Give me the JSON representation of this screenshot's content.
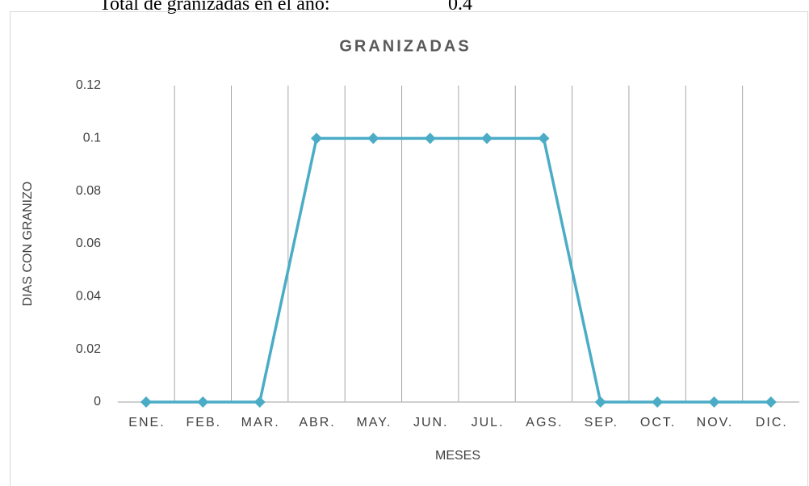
{
  "header": {
    "label": "Total de granizadas en el año:",
    "value": "0.4"
  },
  "chart_data": {
    "type": "line",
    "title": "GRANIZADAS",
    "x_label": "MESES",
    "y_label": "DIAS CON GRANIZO",
    "categories": [
      "ENE.",
      "FEB.",
      "MAR.",
      "ABR.",
      "MAY.",
      "JUN.",
      "JUL.",
      "AGS.",
      "SEP.",
      "OCT.",
      "NOV.",
      "DIC."
    ],
    "series": [
      {
        "name": "GRANIZADAS",
        "color": "#4bacc6",
        "values": [
          0,
          0,
          0,
          0.1,
          0.1,
          0.1,
          0.1,
          0.1,
          0,
          0,
          0,
          0
        ]
      }
    ],
    "ylim": [
      0,
      0.12
    ],
    "yticks": [
      0,
      0.02,
      0.04,
      0.06,
      0.08,
      0.1,
      0.12
    ],
    "grid": true,
    "legend": false
  }
}
